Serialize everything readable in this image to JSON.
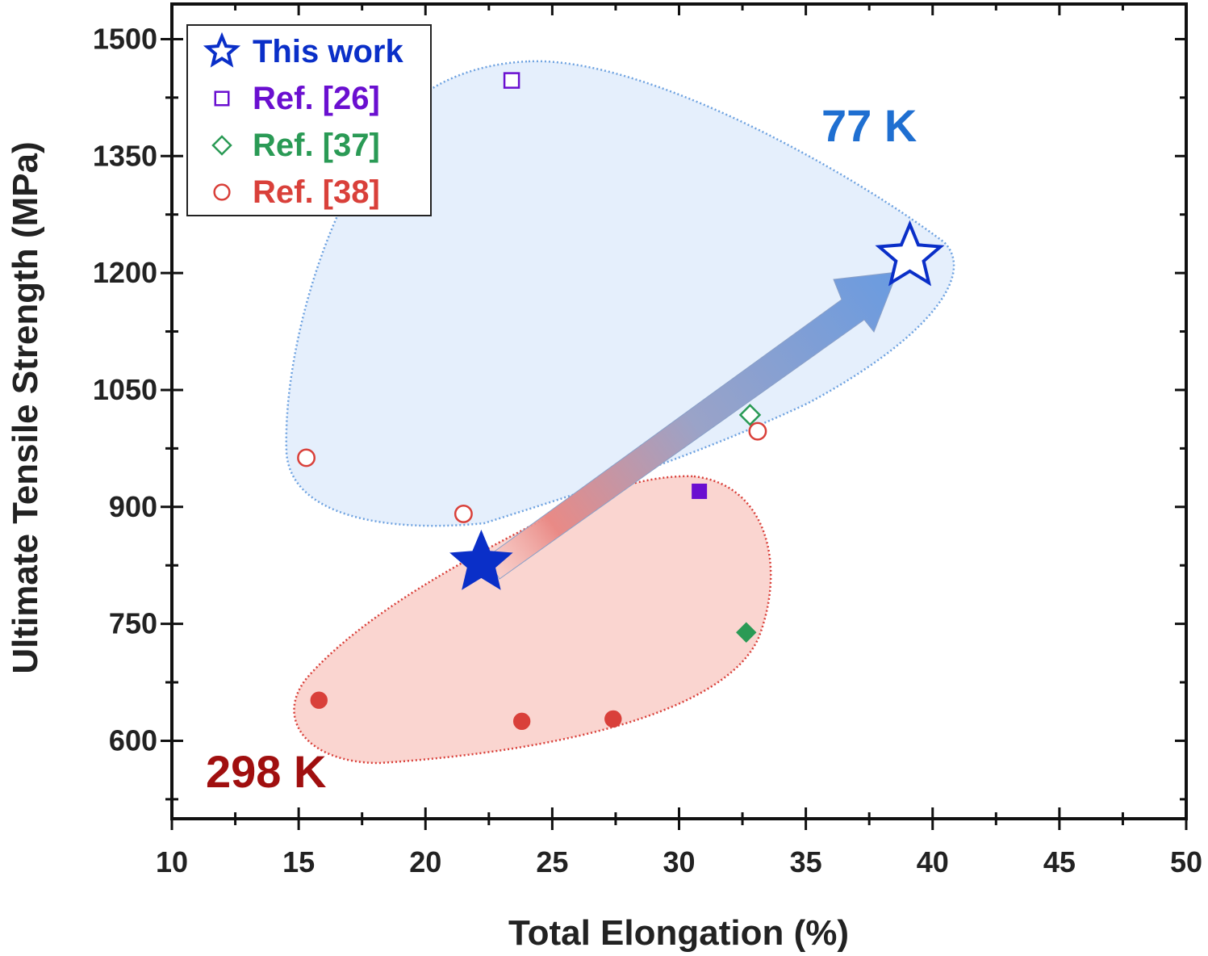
{
  "chart_data": {
    "type": "scatter",
    "title": "",
    "xlabel": "Total Elongation (%)",
    "ylabel": "Ultimate Tensile Strength (MPa)",
    "xlim": [
      10,
      50
    ],
    "ylim": [
      500,
      1545
    ],
    "xticks": [
      10,
      15,
      20,
      25,
      30,
      35,
      40,
      45,
      50
    ],
    "yticks": [
      600,
      750,
      900,
      1050,
      1200,
      1350,
      1500
    ],
    "grid": false,
    "legend_position": "top-left",
    "series": [
      {
        "name": "This work",
        "marker": "star",
        "color": "#0a2fc8",
        "points": [
          {
            "x": 22.2,
            "y": 828,
            "temp": "298 K"
          },
          {
            "x": 39.1,
            "y": 1221,
            "temp": "77 K"
          }
        ]
      },
      {
        "name": "Ref. [26]",
        "marker": "square",
        "color": "#6a0fd0",
        "points": [
          {
            "x": 30.8,
            "y": 920,
            "temp": "298 K"
          },
          {
            "x": 23.4,
            "y": 1447,
            "temp": "77 K"
          }
        ]
      },
      {
        "name": "Ref. [37]",
        "marker": "diamond",
        "color": "#2a9a55",
        "points": [
          {
            "x": 32.65,
            "y": 739,
            "temp": "298 K"
          },
          {
            "x": 32.8,
            "y": 1018,
            "temp": "77 K"
          }
        ]
      },
      {
        "name": "Ref. [38]",
        "marker": "circle",
        "color": "#d9403a",
        "points": [
          {
            "x": 15.8,
            "y": 652,
            "temp": "298 K"
          },
          {
            "x": 23.8,
            "y": 625,
            "temp": "298 K"
          },
          {
            "x": 27.4,
            "y": 628,
            "temp": "298 K"
          },
          {
            "x": 15.3,
            "y": 963,
            "temp": "77 K"
          },
          {
            "x": 21.5,
            "y": 891,
            "temp": "77 K"
          },
          {
            "x": 33.1,
            "y": 997,
            "temp": "77 K"
          }
        ]
      }
    ],
    "annotations": [
      {
        "text": "77 K",
        "color": "#1f6fd1"
      },
      {
        "text": "298 K",
        "color": "#a00f0f"
      }
    ]
  }
}
